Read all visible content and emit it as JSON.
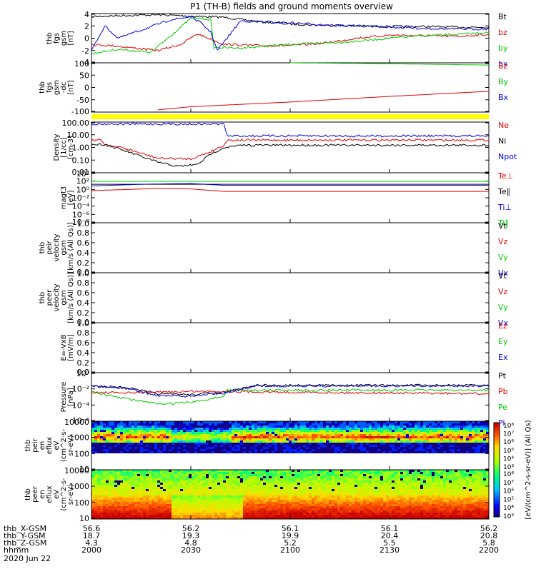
{
  "title": "P1 (TH-B) fields and ground moments overview",
  "colors": {
    "black": "#000000",
    "red": "#e00000",
    "green": "#00c800",
    "blue": "#0000e0",
    "yellow": "#ffff00"
  },
  "panels": [
    {
      "id": "fgs",
      "ylabel_lines": [
        "thb",
        "fgs",
        "gsm",
        "[nT]"
      ],
      "ticks": [
        "4",
        "2",
        "0",
        "-2",
        "-4"
      ],
      "legend": [
        {
          "text": "Bt",
          "color": "black"
        },
        {
          "text": "bz",
          "color": "red"
        },
        {
          "text": "by",
          "color": "green"
        },
        {
          "text": "bx",
          "color": "blue"
        }
      ]
    },
    {
      "id": "fgs-dc",
      "ylabel_lines": [
        "thb",
        "fgs",
        "gsm",
        "-dc",
        "[nT]"
      ],
      "ticks": [
        "100",
        "50",
        "0",
        "-50",
        "-100"
      ],
      "legend": [
        {
          "text": "Bz",
          "color": "red"
        },
        {
          "text": "By",
          "color": "green"
        },
        {
          "text": "Bx",
          "color": "blue"
        }
      ]
    },
    {
      "id": "density",
      "ylabel_lines": [
        "Density",
        "[1/cc]",
        "[cm-3]"
      ],
      "ticks": [
        "100.00",
        "10.00",
        "1.00",
        "0.10",
        "0.01"
      ],
      "legend": [
        {
          "text": "Ne",
          "color": "red"
        },
        {
          "text": "Ni",
          "color": "black"
        },
        {
          "text": "Npot",
          "color": "blue"
        }
      ]
    },
    {
      "id": "temp",
      "ylabel_lines": [
        "magt3",
        "[eV]"
      ],
      "ticks": [
        "10⁴",
        "10²",
        "10⁰",
        "10⁻²",
        "10⁻⁴",
        "10⁻⁶",
        "10⁻⁸"
      ],
      "legend": [
        {
          "text": "Te⊥",
          "color": "red"
        },
        {
          "text": "Te∥",
          "color": "black"
        },
        {
          "text": "Ti⊥",
          "color": "blue"
        },
        {
          "text": "Ti∥",
          "color": "green"
        }
      ]
    },
    {
      "id": "peir-vel",
      "ylabel_lines": [
        "thb",
        "peir",
        "velocity",
        "gsm",
        "[km/s (All Qs)]"
      ],
      "ticks": [
        "1.0",
        "0.8",
        "0.6",
        "0.4",
        "0.2",
        "0.0"
      ],
      "legend": [
        {
          "text": "Vt",
          "color": "black"
        },
        {
          "text": "Vz",
          "color": "red"
        },
        {
          "text": "Vy",
          "color": "green"
        },
        {
          "text": "Vx",
          "color": "blue"
        }
      ]
    },
    {
      "id": "peer-vel",
      "ylabel_lines": [
        "thb",
        "peer",
        "velocity",
        "gsm",
        "[km/s (All Qs)]"
      ],
      "ticks": [
        "1.0",
        "0.8",
        "0.6",
        "0.4",
        "0.2",
        "0.0"
      ],
      "legend": [
        {
          "text": "Vt",
          "color": "black"
        },
        {
          "text": "Vz",
          "color": "red"
        },
        {
          "text": "Vy",
          "color": "green"
        },
        {
          "text": "Vx",
          "color": "blue"
        }
      ]
    },
    {
      "id": "efield",
      "ylabel_lines": [
        "E=-VxB",
        "[mV/m]"
      ],
      "ticks": [
        "1.0",
        "0.8",
        "0.6",
        "0.4",
        "0.2",
        "0.0"
      ],
      "legend": [
        {
          "text": "Ez",
          "color": "red"
        },
        {
          "text": "Ey",
          "color": "green"
        },
        {
          "text": "Ex",
          "color": "blue"
        }
      ]
    },
    {
      "id": "pressure",
      "ylabel_lines": [
        "Pressure",
        "[nPa]"
      ],
      "ticks": [
        "10⁰",
        "10⁻²",
        "10⁻⁴",
        "10⁻⁶"
      ],
      "legend": [
        {
          "text": "Pt",
          "color": "black"
        },
        {
          "text": "Pb",
          "color": "red"
        },
        {
          "text": "Pe",
          "color": "green"
        },
        {
          "text": "Pi",
          "color": "blue"
        }
      ]
    },
    {
      "id": "peir-spec",
      "ylabel_lines": [
        "thb",
        "peir",
        "en",
        "eflux",
        "eV",
        "(cm^2-s-",
        "sr-eV)"
      ],
      "ticks": [
        "10000",
        "1000",
        "100",
        "10"
      ],
      "colorbar_ticks": [
        "10⁸",
        "10⁷",
        "10⁶",
        "10⁵",
        "10⁴",
        "10³"
      ]
    },
    {
      "id": "peer-spec",
      "ylabel_lines": [
        "thb",
        "peer",
        "en",
        "eflux",
        "eV",
        "(cm^2-s-",
        "sr-eV)"
      ],
      "ticks": [
        "10000",
        "1000",
        "100",
        "10"
      ],
      "colorbar_ticks": [
        "10⁸",
        "10⁷",
        "10⁶",
        "10⁵",
        "10⁴",
        "10³"
      ]
    }
  ],
  "colorbar_label": "[eV/(cm^2-s-sr-eV)] (All Qs)",
  "time_axis": {
    "rows": [
      {
        "label": "thb_X-GSM",
        "values": [
          "56.6",
          "56.2",
          "56.1",
          "56.1",
          "56.2"
        ]
      },
      {
        "label": "thb_Y-GSM",
        "values": [
          "18.7",
          "19.3",
          "19.9",
          "20.4",
          "20.8"
        ]
      },
      {
        "label": "thb_Z-GSM",
        "values": [
          "4.3",
          "4.8",
          "5.2",
          "5.5",
          "5.8"
        ]
      },
      {
        "label": "hhmm",
        "values": [
          "2000",
          "2030",
          "2100",
          "2130",
          "2200"
        ]
      }
    ],
    "date": "2020 Jun 22"
  },
  "chart_data": {
    "type": "line",
    "title": "P1 (TH-B) fields and ground moments overview",
    "x_ticks_hhmm": [
      "2000",
      "2030",
      "2100",
      "2130",
      "2200"
    ],
    "x_range": [
      "2000",
      "2200"
    ],
    "panels": [
      {
        "name": "fgs",
        "ylim": [
          -4,
          4
        ],
        "series": [
          {
            "name": "Bt",
            "color": "black",
            "x": [
              2000,
              2010,
              2020,
              2030,
              2040,
              2050,
              2100,
              2110,
              2120,
              2130,
              2140,
              2150,
              2200
            ],
            "y": [
              3.5,
              3.7,
              3.8,
              3.6,
              3.4,
              2.7,
              2.3,
              2.1,
              2.0,
              1.9,
              1.9,
              1.8,
              1.8
            ]
          },
          {
            "name": "bz",
            "color": "red",
            "x": [
              2000,
              2008,
              2020,
              2027,
              2032,
              2040,
              2050,
              2100,
              2110,
              2120,
              2130,
              2140,
              2150,
              2200
            ],
            "y": [
              -1.0,
              -1.3,
              -2.0,
              -1.0,
              0.7,
              -1.0,
              -1.2,
              -1.2,
              -0.8,
              0.0,
              0.5,
              0.4,
              0.3,
              0.6
            ]
          },
          {
            "name": "by",
            "color": "green",
            "x": [
              2000,
              2008,
              2018,
              2030,
              2034,
              2036,
              2037,
              2045,
              2100,
              2110,
              2120,
              2130,
              2140,
              2150,
              2200
            ],
            "y": [
              -2.5,
              -1.8,
              -2.3,
              3.2,
              3.2,
              3.0,
              -1.5,
              -1.6,
              -1.0,
              -0.8,
              -0.5,
              0.0,
              0.4,
              0.6,
              0.9
            ]
          },
          {
            "name": "bx",
            "color": "blue",
            "x": [
              2000,
              2004,
              2008,
              2016,
              2024,
              2030,
              2033,
              2036,
              2038,
              2045,
              2100,
              2110,
              2120,
              2130,
              2140,
              2150,
              2200
            ],
            "y": [
              -2.0,
              2.0,
              0.0,
              1.5,
              3.0,
              3.5,
              2.5,
              1.0,
              -2.0,
              2.8,
              2.5,
              2.2,
              2.0,
              1.8,
              1.6,
              1.5,
              1.5
            ]
          }
        ]
      },
      {
        "name": "fgs-dc",
        "ylim": [
          -120,
          100
        ],
        "series": [
          {
            "name": "Bz",
            "color": "red",
            "x": [
              2020,
              2030,
              2100,
              2130,
              2200
            ],
            "y": [
              -110,
              -96,
              -75,
              -50,
              -27
            ]
          },
          {
            "name": "By",
            "color": "green",
            "x": [
              2100,
              2130,
              2200
            ],
            "y": [
              100,
              96,
              90
            ]
          }
        ]
      },
      {
        "name": "density",
        "ylim": [
          0.005,
          300
        ],
        "yscale": "log",
        "series": [
          {
            "name": "Ne",
            "color": "red",
            "x": [
              2000,
              2003,
              2004,
              2010,
              2020,
              2030,
              2036,
              2040,
              2041,
              2200
            ],
            "y": [
              6,
              6,
              2.5,
              1,
              0.12,
              0.1,
              0.5,
              2,
              6,
              6
            ]
          },
          {
            "name": "Ni",
            "color": "black",
            "x": [
              2000,
              2004,
              2010,
              2020,
              2026,
              2032,
              2036,
              2040,
              2046,
              2200
            ],
            "y": [
              2.3,
              2.3,
              0.6,
              0.05,
              0.02,
              0.03,
              0.3,
              1.2,
              2,
              2
            ]
          },
          {
            "name": "Npot",
            "color": "blue",
            "x": [
              2000,
              2004,
              2040,
              2041,
              2200
            ],
            "y": [
              200,
              200,
              200,
              15,
              15
            ]
          }
        ]
      },
      {
        "name": "temp",
        "ylim": [
          1e-09,
          100000.0
        ],
        "yscale": "log",
        "series": [
          {
            "name": "Te⊥",
            "color": "red",
            "x": [
              2000,
              2010,
              2020,
              2030,
              2040,
              2200
            ],
            "y": [
              1,
              2,
              4,
              3,
              0.6,
              0.6
            ]
          },
          {
            "name": "Te∥",
            "color": "black",
            "x": [
              2000,
              2200
            ],
            "y": [
              60,
              60
            ]
          },
          {
            "name": "Ti⊥",
            "color": "blue",
            "x": [
              2000,
              2015,
              2030,
              2040,
              2200
            ],
            "y": [
              20,
              60,
              100,
              30,
              30
            ]
          },
          {
            "name": "Ti∥",
            "color": "green",
            "x": [
              2000,
              2200
            ],
            "y": [
              400,
              400
            ]
          }
        ]
      },
      {
        "name": "peir-vel",
        "ylim": [
          0,
          1
        ],
        "series": []
      },
      {
        "name": "peer-vel",
        "ylim": [
          0,
          1
        ],
        "series": []
      },
      {
        "name": "efield",
        "ylim": [
          0,
          1
        ],
        "series": []
      },
      {
        "name": "pressure",
        "ylim": [
          1e-07,
          1
        ],
        "yscale": "log",
        "series": [
          {
            "name": "Pt",
            "color": "black",
            "x": [
              2000,
              2010,
              2020,
              2030,
              2040,
              2050,
              2200
            ],
            "y": [
              0.012,
              0.008,
              0.0009,
              0.0007,
              0.0015,
              0.015,
              0.015
            ]
          },
          {
            "name": "Pb",
            "color": "red",
            "x": [
              2000,
              2010,
              2020,
              2030,
              2040,
              2100,
              2130,
              2200
            ],
            "y": [
              0.0015,
              0.0012,
              0.0015,
              0.002,
              0.002,
              0.0015,
              0.0012,
              0.0009
            ]
          },
          {
            "name": "Pe",
            "color": "green",
            "x": [
              2000,
              2005,
              2020,
              2030,
              2040,
              2041,
              2200
            ],
            "y": [
              0.002,
              0.0005,
              3e-05,
              5e-05,
              0.0004,
              0.003,
              0.003
            ]
          },
          {
            "name": "Pi",
            "color": "blue",
            "x": [
              2000,
              2010,
              2020,
              2030,
              2040,
              2050,
              2200
            ],
            "y": [
              0.012,
              0.006,
              0.0005,
              0.0004,
              0.0012,
              0.012,
              0.012
            ]
          }
        ]
      },
      {
        "name": "peir-spec",
        "type": "heatmap",
        "ylim": [
          5,
          20000
        ],
        "yscale": "log",
        "zlim": [
          1000,
          100000000
        ],
        "zscale": "log"
      },
      {
        "name": "peer-spec",
        "type": "heatmap",
        "ylim": [
          5,
          20000
        ],
        "yscale": "log",
        "zlim": [
          1000,
          100000000
        ],
        "zscale": "log"
      }
    ]
  }
}
